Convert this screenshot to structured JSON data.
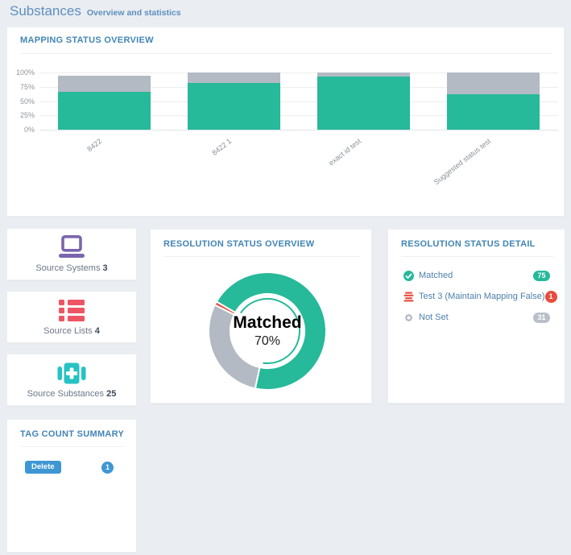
{
  "page": {
    "title": "Substances",
    "subtitle": "Overview and statistics"
  },
  "colors": {
    "page_background": "#eaedf1",
    "panel_title_blue": "#4285b5",
    "header_blue": "#5e8fc0",
    "link_blue": "#4e80ad",
    "teal_green": "#26b99a",
    "neutral_grey": "#b3bac4",
    "alert_red": "#e74c3c",
    "purple": "#7a65ae",
    "cyan_teal": "#27c2c3",
    "badge_blue": "#3e97d4"
  },
  "mapping_panel": {
    "title": "MAPPING STATUS OVERVIEW"
  },
  "resolution_overview_panel": {
    "title": "RESOLUTION STATUS OVERVIEW"
  },
  "resolution_detail_panel": {
    "title": "RESOLUTION STATUS DETAIL",
    "items": [
      {
        "label": "Matched",
        "count": "75",
        "icon": "check-circle-icon",
        "icon_color": "#26b99a",
        "badge_color": "#26b99a",
        "badge_shape": "pill"
      },
      {
        "label": "Test 3 (Maintain Mapping False)",
        "count": "1",
        "icon": "stack-icon",
        "icon_color": "#e74c3c",
        "badge_color": "#e74c3c",
        "badge_shape": "circle"
      },
      {
        "label": "Not Set",
        "count": "31",
        "icon": "gear-icon",
        "icon_color": "#b3bac3",
        "badge_color": "#b9bfc8",
        "badge_shape": "pill"
      }
    ]
  },
  "tag_panel": {
    "title": "TAG COUNT SUMMARY",
    "items": [
      {
        "label": "Delete",
        "count": "1",
        "color": "#3e97d4"
      }
    ]
  },
  "summary_cards": [
    {
      "label": "Source Systems",
      "count": "3",
      "icon": "laptop-icon",
      "icon_color": "#7a65ae"
    },
    {
      "label": "Source Lists",
      "count": "4",
      "icon": "list-icon",
      "icon_color": "#ed5565"
    },
    {
      "label": "Source Substances",
      "count": "25",
      "icon": "medkit-icon",
      "icon_color": "#27c2c3"
    }
  ],
  "chart_data": [
    {
      "type": "bar",
      "stacked": true,
      "title": "MAPPING STATUS OVERVIEW",
      "categories": [
        "8422",
        "8422 1",
        "exact id test",
        "Suggested status test"
      ],
      "series": [
        {
          "name": "green-segment",
          "color": "#26b99a",
          "values": [
            66,
            82,
            93,
            62
          ]
        },
        {
          "name": "grey-segment",
          "color": "#b3bac4",
          "values": [
            29,
            18,
            7,
            38
          ]
        }
      ],
      "y_ticks": [
        "0%",
        "25%",
        "50%",
        "75%",
        "100%"
      ],
      "ylim": [
        0,
        100
      ],
      "grid": true,
      "legend": false,
      "x_label_rotation_deg": -38
    },
    {
      "type": "donut",
      "title": "RESOLUTION STATUS OVERVIEW",
      "center_label": "Matched",
      "center_value": "70%",
      "start_angle_deg_from_top_cw": 300,
      "slices": [
        {
          "label": "Matched",
          "value": 70,
          "color": "#26b99a",
          "highlighted": true
        },
        {
          "label": "Not Set",
          "value": 29,
          "color": "#b3bac4",
          "highlighted": false
        },
        {
          "label": "Test 3 (Maintain Mapping False)",
          "value": 1,
          "color": "#e74c3c",
          "highlighted": false
        }
      ],
      "legend": false
    }
  ]
}
